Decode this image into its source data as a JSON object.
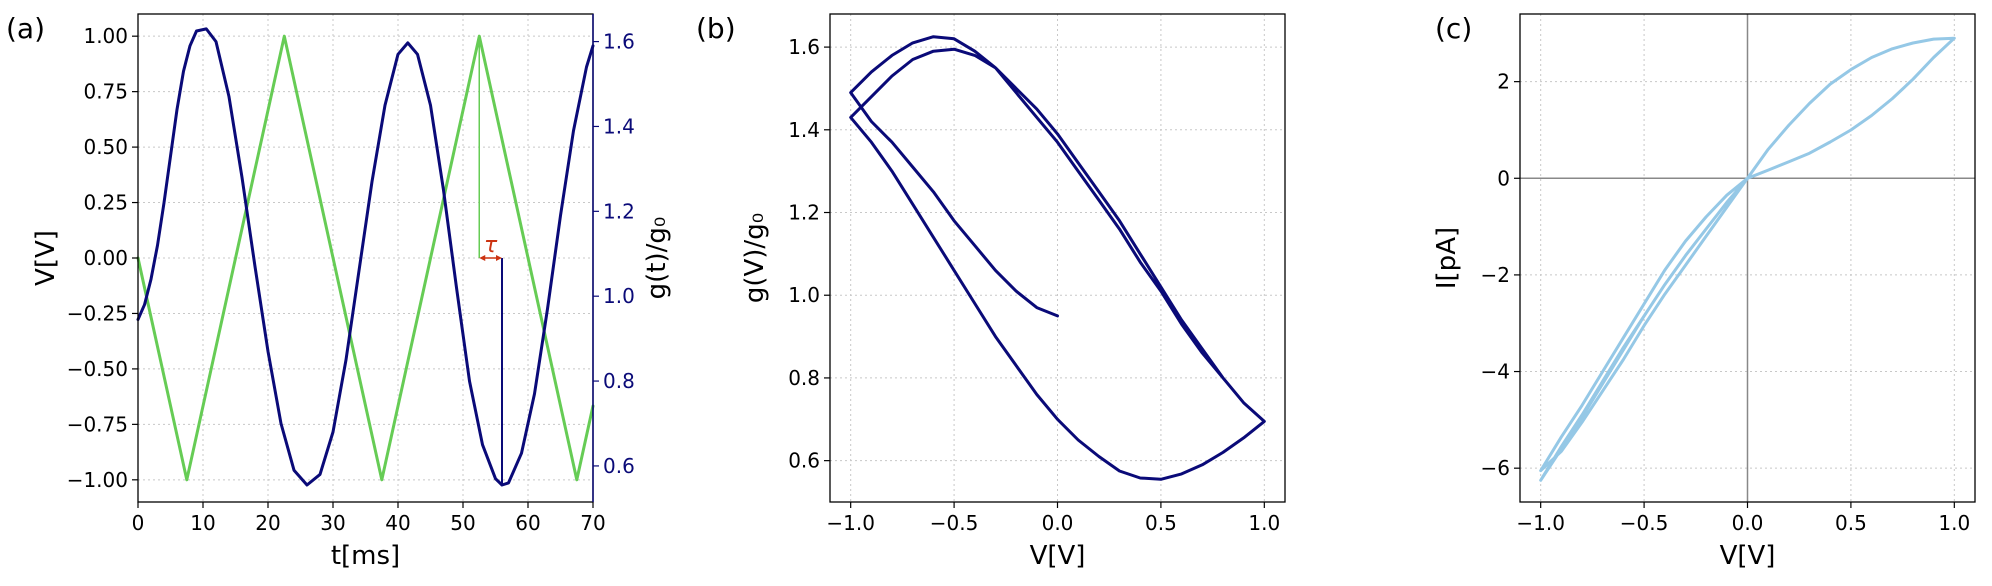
{
  "colors": {
    "voltage": "#66cc55",
    "conductance": "#0a0a78",
    "current": "#95c8e6",
    "annotation": "#cc3311",
    "zero_line": "#888888"
  },
  "chart_data": [
    {
      "panel_label": "(a)",
      "type": "line",
      "xlabel": "t[ms]",
      "ylabel": "V[V]",
      "y2label": "g(t)/g₀",
      "xlim": [
        0,
        70
      ],
      "ylim": [
        -1.1,
        1.1
      ],
      "y2lim": [
        0.515,
        1.665
      ],
      "grid": true,
      "xticks": [
        "0",
        "10",
        "20",
        "30",
        "40",
        "50",
        "60",
        "70"
      ],
      "yticks": [
        "1.00",
        "0.75",
        "0.50",
        "0.25",
        "0.00",
        "−0.25",
        "−0.50",
        "−0.75",
        "−1.00"
      ],
      "y2ticks": [
        "1.6",
        "1.4",
        "1.2",
        "1.0",
        "0.8",
        "0.6"
      ],
      "series": [
        {
          "axis": "left",
          "x": [
            0,
            7.5,
            22.5,
            37.5,
            52.5,
            67.5,
            70
          ],
          "y": [
            0,
            -1,
            1,
            -1,
            1,
            -1,
            -0.667
          ]
        },
        {
          "axis": "right",
          "x": [
            0,
            1,
            2,
            3,
            4,
            5,
            6,
            7,
            8,
            9,
            10.5,
            12,
            14,
            16,
            18,
            20,
            22,
            24,
            26,
            28,
            30,
            32,
            34,
            36,
            38,
            40,
            41.5,
            43,
            45,
            47,
            49,
            51,
            53,
            55,
            56,
            57,
            59,
            61,
            63,
            65,
            67,
            69,
            70
          ],
          "y": [
            0.945,
            0.98,
            1.04,
            1.12,
            1.22,
            1.33,
            1.44,
            1.53,
            1.59,
            1.625,
            1.63,
            1.6,
            1.47,
            1.28,
            1.07,
            0.87,
            0.7,
            0.59,
            0.555,
            0.58,
            0.68,
            0.85,
            1.06,
            1.27,
            1.45,
            1.57,
            1.597,
            1.57,
            1.45,
            1.25,
            1.02,
            0.8,
            0.65,
            0.57,
            0.555,
            0.56,
            0.63,
            0.77,
            0.97,
            1.19,
            1.39,
            1.54,
            1.59
          ]
        }
      ],
      "annotations": [
        {
          "text": "τ",
          "t_start": 52.5,
          "t_end": 56,
          "level": 0
        }
      ]
    },
    {
      "panel_label": "(b)",
      "type": "line",
      "xlabel": "V[V]",
      "ylabel": "g(V)/g₀",
      "xlim": [
        -1.1,
        1.1
      ],
      "ylim": [
        0.5,
        1.68
      ],
      "grid": true,
      "xticks": [
        "−1.0",
        "−0.5",
        "0.0",
        "0.5",
        "1.0"
      ],
      "yticks": [
        "1.6",
        "1.4",
        "1.2",
        "1.0",
        "0.8",
        "0.6"
      ],
      "series": [
        {
          "x": [
            0,
            -0.1,
            -0.2,
            -0.3,
            -0.4,
            -0.5,
            -0.6,
            -0.7,
            -0.8,
            -0.9,
            -1.0,
            -0.9,
            -0.8,
            -0.7,
            -0.6,
            -0.5,
            -0.4,
            -0.3,
            -0.2,
            -0.1,
            0,
            0.1,
            0.2,
            0.3,
            0.4,
            0.5,
            0.6,
            0.7,
            0.8,
            0.9,
            1.0,
            0.9,
            0.8,
            0.7,
            0.6,
            0.5,
            0.4,
            0.3,
            0.2,
            0.1,
            0,
            -0.1,
            -0.2,
            -0.3,
            -0.4,
            -0.5,
            -0.6,
            -0.7,
            -0.8,
            -0.9,
            -1.0,
            -0.9,
            -0.8,
            -0.7,
            -0.6,
            -0.5,
            -0.4,
            -0.3,
            -0.2,
            -0.1,
            0,
            0.1,
            0.2,
            0.3,
            0.4,
            0.5,
            0.6,
            0.7,
            0.8,
            0.9,
            1.0
          ],
          "y": [
            0.95,
            0.97,
            1.01,
            1.06,
            1.12,
            1.18,
            1.25,
            1.31,
            1.37,
            1.42,
            1.49,
            1.54,
            1.58,
            1.61,
            1.625,
            1.62,
            1.59,
            1.55,
            1.49,
            1.43,
            1.37,
            1.3,
            1.23,
            1.16,
            1.08,
            1.01,
            0.93,
            0.86,
            0.8,
            0.74,
            0.695,
            0.655,
            0.62,
            0.59,
            0.568,
            0.555,
            0.558,
            0.575,
            0.61,
            0.65,
            0.7,
            0.76,
            0.83,
            0.9,
            0.98,
            1.06,
            1.14,
            1.22,
            1.3,
            1.37,
            1.43,
            1.48,
            1.53,
            1.57,
            1.59,
            1.595,
            1.58,
            1.55,
            1.5,
            1.45,
            1.39,
            1.32,
            1.25,
            1.18,
            1.1,
            1.02,
            0.94,
            0.87,
            0.8,
            0.74,
            0.695
          ]
        }
      ]
    },
    {
      "panel_label": "(c)",
      "type": "line",
      "xlabel": "V[V]",
      "ylabel": "I[pA]",
      "xlim": [
        -1.1,
        1.1
      ],
      "ylim": [
        -6.7,
        3.4
      ],
      "grid": true,
      "zero_lines": true,
      "xticks": [
        "−1.0",
        "−0.5",
        "0.0",
        "0.5",
        "1.0"
      ],
      "yticks": [
        "2",
        "0",
        "−2",
        "−4",
        "−6"
      ],
      "series": [
        {
          "x": [
            0,
            -0.1,
            -0.2,
            -0.3,
            -0.4,
            -0.5,
            -0.6,
            -0.7,
            -0.8,
            -0.9,
            -1.0,
            -0.9,
            -0.8,
            -0.7,
            -0.6,
            -0.5,
            -0.4,
            -0.3,
            -0.2,
            -0.1,
            0,
            0.1,
            0.2,
            0.3,
            0.4,
            0.5,
            0.6,
            0.7,
            0.8,
            0.9,
            1.0,
            0.9,
            0.8,
            0.7,
            0.6,
            0.5,
            0.4,
            0.3,
            0.2,
            0.1,
            0,
            -0.1,
            -0.2,
            -0.3,
            -0.4,
            -0.5,
            -0.6,
            -0.7,
            -0.8,
            -0.9,
            -1.0,
            -0.9,
            -0.8,
            -0.7,
            -0.6,
            -0.5,
            -0.4,
            -0.3,
            -0.2,
            -0.1,
            0,
            0.1,
            0.2,
            0.3,
            0.4,
            0.5,
            0.6,
            0.7,
            0.8,
            0.9,
            1.0
          ],
          "y": [
            0,
            -0.5,
            -1.05,
            -1.6,
            -2.2,
            -2.85,
            -3.55,
            -4.25,
            -4.95,
            -5.6,
            -6.25,
            -5.55,
            -4.9,
            -4.2,
            -3.5,
            -2.85,
            -2.2,
            -1.6,
            -1.05,
            -0.5,
            0,
            0.6,
            1.1,
            1.55,
            1.95,
            2.25,
            2.5,
            2.68,
            2.8,
            2.88,
            2.9,
            2.5,
            2.05,
            1.65,
            1.3,
            1.0,
            0.75,
            0.52,
            0.34,
            0.17,
            0,
            -0.35,
            -0.8,
            -1.3,
            -1.9,
            -2.6,
            -3.3,
            -4.0,
            -4.7,
            -5.35,
            -6.05,
            -5.65,
            -5.05,
            -4.4,
            -3.75,
            -3.05,
            -2.4,
            -1.8,
            -1.2,
            -0.6,
            0,
            0.6,
            1.1,
            1.55,
            1.95,
            2.25,
            2.5,
            2.68,
            2.8,
            2.88,
            2.9
          ]
        }
      ]
    }
  ]
}
